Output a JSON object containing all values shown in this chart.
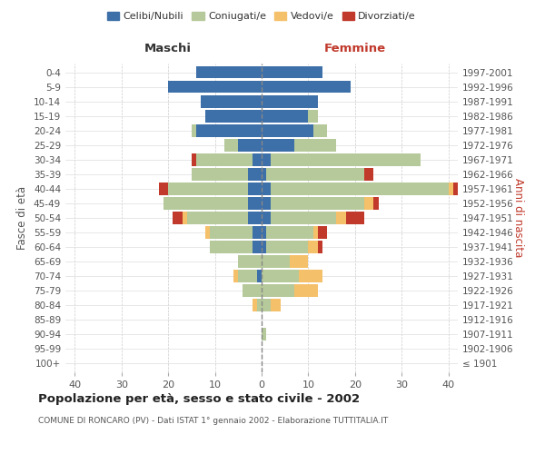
{
  "age_groups": [
    "100+",
    "95-99",
    "90-94",
    "85-89",
    "80-84",
    "75-79",
    "70-74",
    "65-69",
    "60-64",
    "55-59",
    "50-54",
    "45-49",
    "40-44",
    "35-39",
    "30-34",
    "25-29",
    "20-24",
    "15-19",
    "10-14",
    "5-9",
    "0-4"
  ],
  "birth_years": [
    "≤ 1901",
    "1902-1906",
    "1907-1911",
    "1912-1916",
    "1917-1921",
    "1922-1926",
    "1927-1931",
    "1932-1936",
    "1937-1941",
    "1942-1946",
    "1947-1951",
    "1952-1956",
    "1957-1961",
    "1962-1966",
    "1967-1971",
    "1972-1976",
    "1977-1981",
    "1982-1986",
    "1987-1991",
    "1992-1996",
    "1997-2001"
  ],
  "males": {
    "celibi": [
      0,
      0,
      0,
      0,
      0,
      0,
      1,
      0,
      2,
      2,
      3,
      3,
      3,
      3,
      2,
      5,
      14,
      12,
      13,
      20,
      14
    ],
    "coniugati": [
      0,
      0,
      0,
      0,
      1,
      4,
      4,
      5,
      9,
      9,
      13,
      18,
      17,
      12,
      12,
      3,
      1,
      0,
      0,
      0,
      0
    ],
    "vedovi": [
      0,
      0,
      0,
      0,
      1,
      0,
      1,
      0,
      0,
      1,
      1,
      0,
      0,
      0,
      0,
      0,
      0,
      0,
      0,
      0,
      0
    ],
    "divorziati": [
      0,
      0,
      0,
      0,
      0,
      0,
      0,
      0,
      0,
      0,
      2,
      0,
      2,
      0,
      1,
      0,
      0,
      0,
      0,
      0,
      0
    ]
  },
  "females": {
    "nubili": [
      0,
      0,
      0,
      0,
      0,
      0,
      0,
      0,
      1,
      1,
      2,
      2,
      2,
      1,
      2,
      7,
      11,
      10,
      12,
      19,
      13
    ],
    "coniugate": [
      0,
      0,
      1,
      0,
      2,
      7,
      8,
      6,
      9,
      10,
      14,
      20,
      38,
      21,
      32,
      9,
      3,
      2,
      0,
      0,
      0
    ],
    "vedove": [
      0,
      0,
      0,
      0,
      2,
      5,
      5,
      4,
      2,
      1,
      2,
      2,
      1,
      0,
      0,
      0,
      0,
      0,
      0,
      0,
      0
    ],
    "divorziate": [
      0,
      0,
      0,
      0,
      0,
      0,
      0,
      0,
      1,
      2,
      4,
      1,
      3,
      2,
      0,
      0,
      0,
      0,
      0,
      0,
      0
    ]
  },
  "colors": {
    "celibi": "#3d6fa8",
    "coniugati": "#b5c99a",
    "vedovi": "#f5c06a",
    "divorziati": "#c0392b"
  },
  "xlim": 42,
  "title": "Popolazione per età, sesso e stato civile - 2002",
  "subtitle": "COMUNE DI RONCARO (PV) - Dati ISTAT 1° gennaio 2002 - Elaborazione TUTTITALIA.IT",
  "ylabel_left": "Fasce di età",
  "ylabel_right": "Anni di nascita",
  "xlabel_maschi": "Maschi",
  "xlabel_femmine": "Femmine",
  "legend_labels": [
    "Celibi/Nubili",
    "Coniugati/e",
    "Vedovi/e",
    "Divorziati/e"
  ]
}
